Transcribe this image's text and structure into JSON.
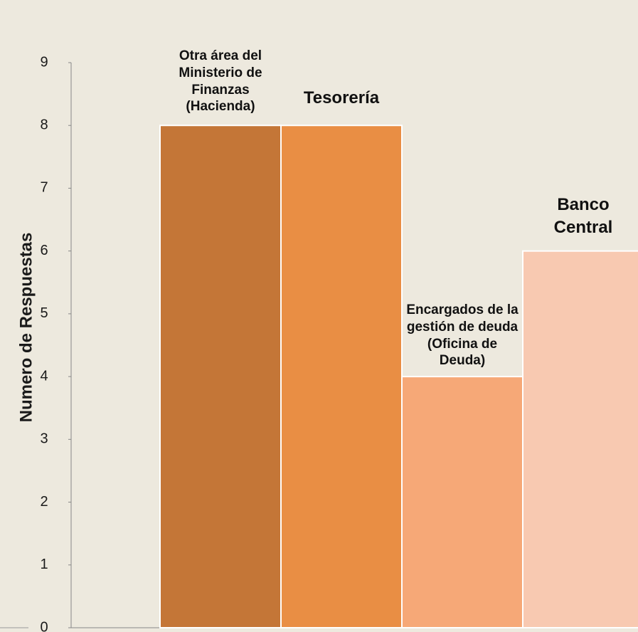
{
  "chart_data": {
    "type": "bar",
    "y_label": "Numero de Respuestas",
    "categories": [
      "Otra área del Ministerio de Finanzas (Hacienda)",
      "Tesorería",
      "Encargados de la gestión de deuda (Oficina de Deuda)",
      "Banco Central"
    ],
    "values": [
      8,
      8,
      4,
      6
    ],
    "colors": [
      "#c47637",
      "#e98e44",
      "#f6a877",
      "#f8c9b1"
    ],
    "ylim": [
      0,
      9
    ],
    "yticks": [
      0,
      1,
      2,
      3,
      4,
      5,
      6,
      7,
      8,
      9
    ],
    "grid": false
  }
}
